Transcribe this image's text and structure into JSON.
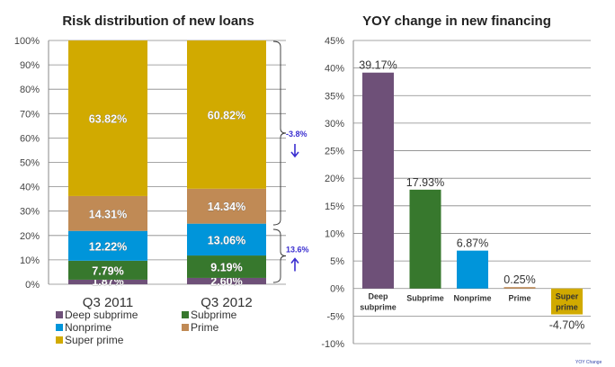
{
  "chart_data": [
    {
      "type": "bar",
      "stacked": true,
      "title": "Risk distribution of new loans",
      "categories": [
        "Q3 2011",
        "Q3 2012"
      ],
      "ylim": [
        0,
        100
      ],
      "yticks": [
        "0%",
        "10%",
        "20%",
        "30%",
        "40%",
        "50%",
        "60%",
        "70%",
        "80%",
        "90%",
        "100%"
      ],
      "grid": true,
      "legend_position": "bottom",
      "series": [
        {
          "name": "Deep subprime",
          "color": "#6e5078",
          "values": [
            1.87,
            2.6
          ],
          "labels": [
            "1.87%",
            "2.60%"
          ]
        },
        {
          "name": "Subprime",
          "color": "#37782d",
          "values": [
            7.79,
            9.19
          ],
          "labels": [
            "7.79%",
            "9.19%"
          ]
        },
        {
          "name": "Nonprime",
          "color": "#0095da",
          "values": [
            12.22,
            13.06
          ],
          "labels": [
            "12.22%",
            "13.06%"
          ]
        },
        {
          "name": "Prime",
          "color": "#c08a55",
          "values": [
            14.31,
            14.34
          ],
          "labels": [
            "14.31%",
            "14.34%"
          ]
        },
        {
          "name": "Super prime",
          "color": "#d1aa00",
          "values": [
            63.82,
            60.82
          ],
          "labels": [
            "63.82%",
            "60.82%"
          ]
        }
      ],
      "annotations": [
        {
          "text": "-3.8%",
          "direction": "down",
          "span": "Prime + Super prime"
        },
        {
          "text": "13.6%",
          "direction": "up",
          "span": "Deep subprime + Subprime + Nonprime"
        }
      ]
    },
    {
      "type": "bar",
      "title": "YOY change in new financing",
      "categories": [
        "Deep subprime",
        "Subprime",
        "Nonprime",
        "Prime",
        "Super prime"
      ],
      "category_lines": [
        [
          "Deep",
          "subprime"
        ],
        [
          "Subprime"
        ],
        [
          "Nonprime"
        ],
        [
          "Prime"
        ],
        [
          "Super",
          "prime"
        ]
      ],
      "values": [
        39.17,
        17.93,
        6.87,
        0.25,
        -4.7
      ],
      "labels": [
        "39.17%",
        "17.93%",
        "6.87%",
        "0.25%",
        "-4.70%"
      ],
      "colors": [
        "#6e5078",
        "#37782d",
        "#0095da",
        "#c08a55",
        "#d1aa00"
      ],
      "ylim": [
        -10,
        45
      ],
      "yticks": [
        "-10%",
        "-5%",
        "0%",
        "5%",
        "10%",
        "15%",
        "20%",
        "25%",
        "30%",
        "35%",
        "40%",
        "45%"
      ],
      "grid": true,
      "legend_text": "YOY Change"
    }
  ]
}
